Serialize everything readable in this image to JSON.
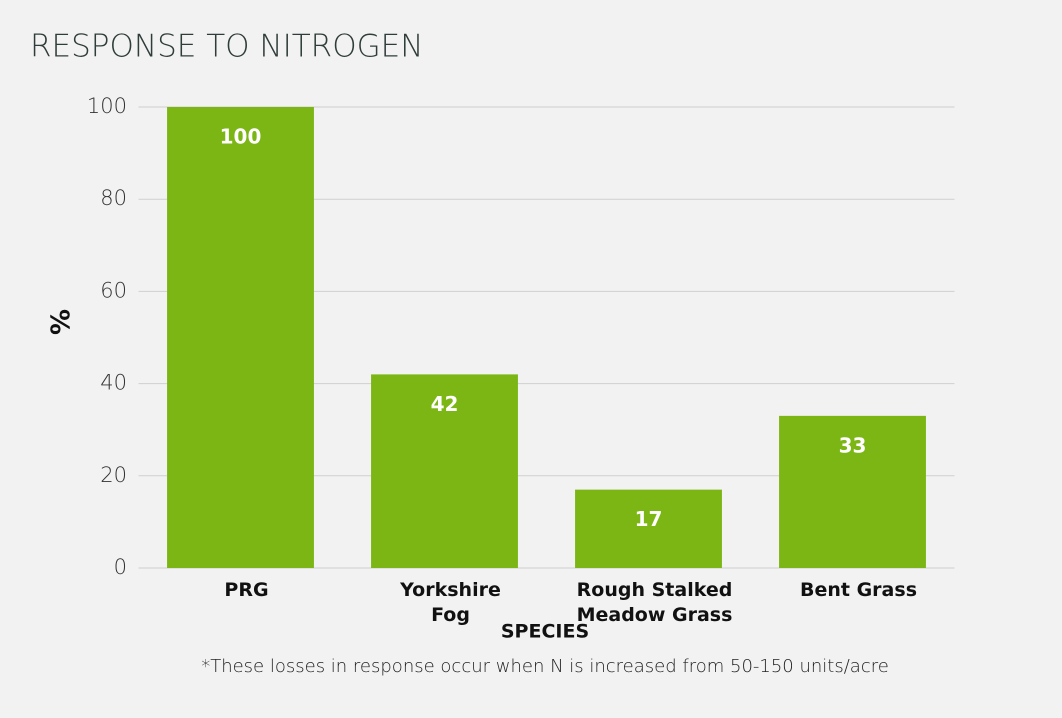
{
  "chart_data": {
    "type": "bar",
    "title": "RESPONSE TO NITROGEN",
    "categories": [
      "PRG",
      "Yorkshire Fog",
      "Rough Stalked Meadow Grass",
      "Bent Grass"
    ],
    "values": [
      100,
      42,
      17,
      33
    ],
    "color": "#7cb614",
    "ylabel": "%",
    "xlabel": "SPECIES",
    "note": "*These losses in response occur when N is increased from 50-150 units/acre",
    "ylim": [
      0,
      100
    ],
    "yticks": [
      0,
      20,
      40,
      60,
      80,
      100
    ],
    "grid": true
  }
}
